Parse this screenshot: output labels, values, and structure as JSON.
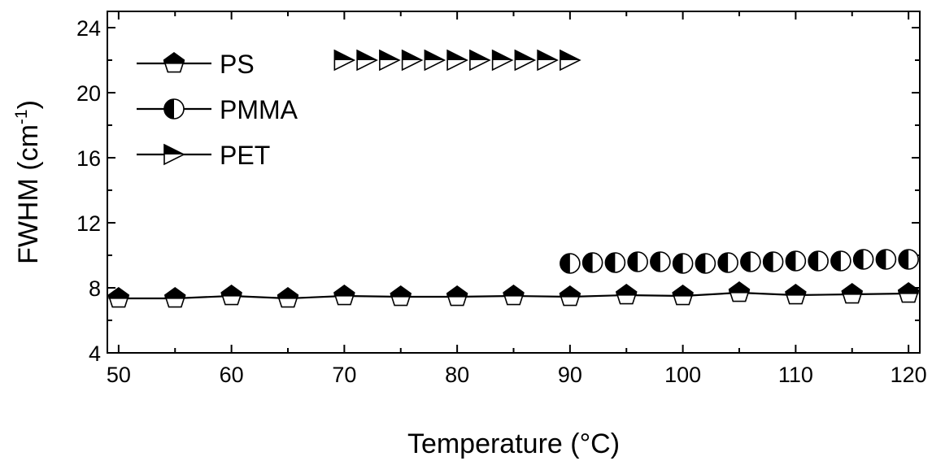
{
  "chart_data": {
    "type": "line",
    "title": "",
    "xlabel": "Temperature (°C)",
    "ylabel_main": "FWHM (cm",
    "ylabel_sup": "-1",
    "ylabel_close": ")",
    "xlim": [
      49,
      121
    ],
    "ylim": [
      4,
      25
    ],
    "xticks": [
      50,
      60,
      70,
      80,
      90,
      100,
      110,
      120
    ],
    "yticks": [
      4,
      8,
      12,
      16,
      20,
      24
    ],
    "xtick_labels": [
      "50",
      "60",
      "70",
      "80",
      "90",
      "100",
      "110",
      "120"
    ],
    "ytick_labels": [
      "4",
      "8",
      "12",
      "16",
      "20",
      "24"
    ],
    "grid": false,
    "legend_position": "top-left",
    "series": [
      {
        "name": "PS",
        "marker": "pentagon-half-filled-top",
        "line": true,
        "x": [
          50,
          55,
          60,
          65,
          70,
          75,
          80,
          85,
          90,
          95,
          100,
          105,
          110,
          115,
          120
        ],
        "y": [
          7.35,
          7.35,
          7.5,
          7.35,
          7.5,
          7.45,
          7.45,
          7.5,
          7.45,
          7.55,
          7.5,
          7.7,
          7.55,
          7.6,
          7.65
        ]
      },
      {
        "name": "PMMA",
        "marker": "circle-half-filled-left",
        "line": false,
        "x": [
          90,
          92,
          94,
          96,
          98,
          100,
          102,
          104,
          106,
          108,
          110,
          112,
          114,
          116,
          118,
          120
        ],
        "y": [
          9.5,
          9.55,
          9.55,
          9.6,
          9.6,
          9.5,
          9.5,
          9.55,
          9.6,
          9.6,
          9.65,
          9.65,
          9.65,
          9.75,
          9.75,
          9.75
        ]
      },
      {
        "name": "PET",
        "marker": "triangle-right-half-filled-top",
        "line": false,
        "x": [
          70,
          72,
          74,
          76,
          78,
          80,
          82,
          84,
          86,
          88,
          90
        ],
        "y": [
          22,
          22,
          22,
          22,
          22,
          22,
          22,
          22,
          22,
          22,
          22
        ]
      }
    ]
  }
}
